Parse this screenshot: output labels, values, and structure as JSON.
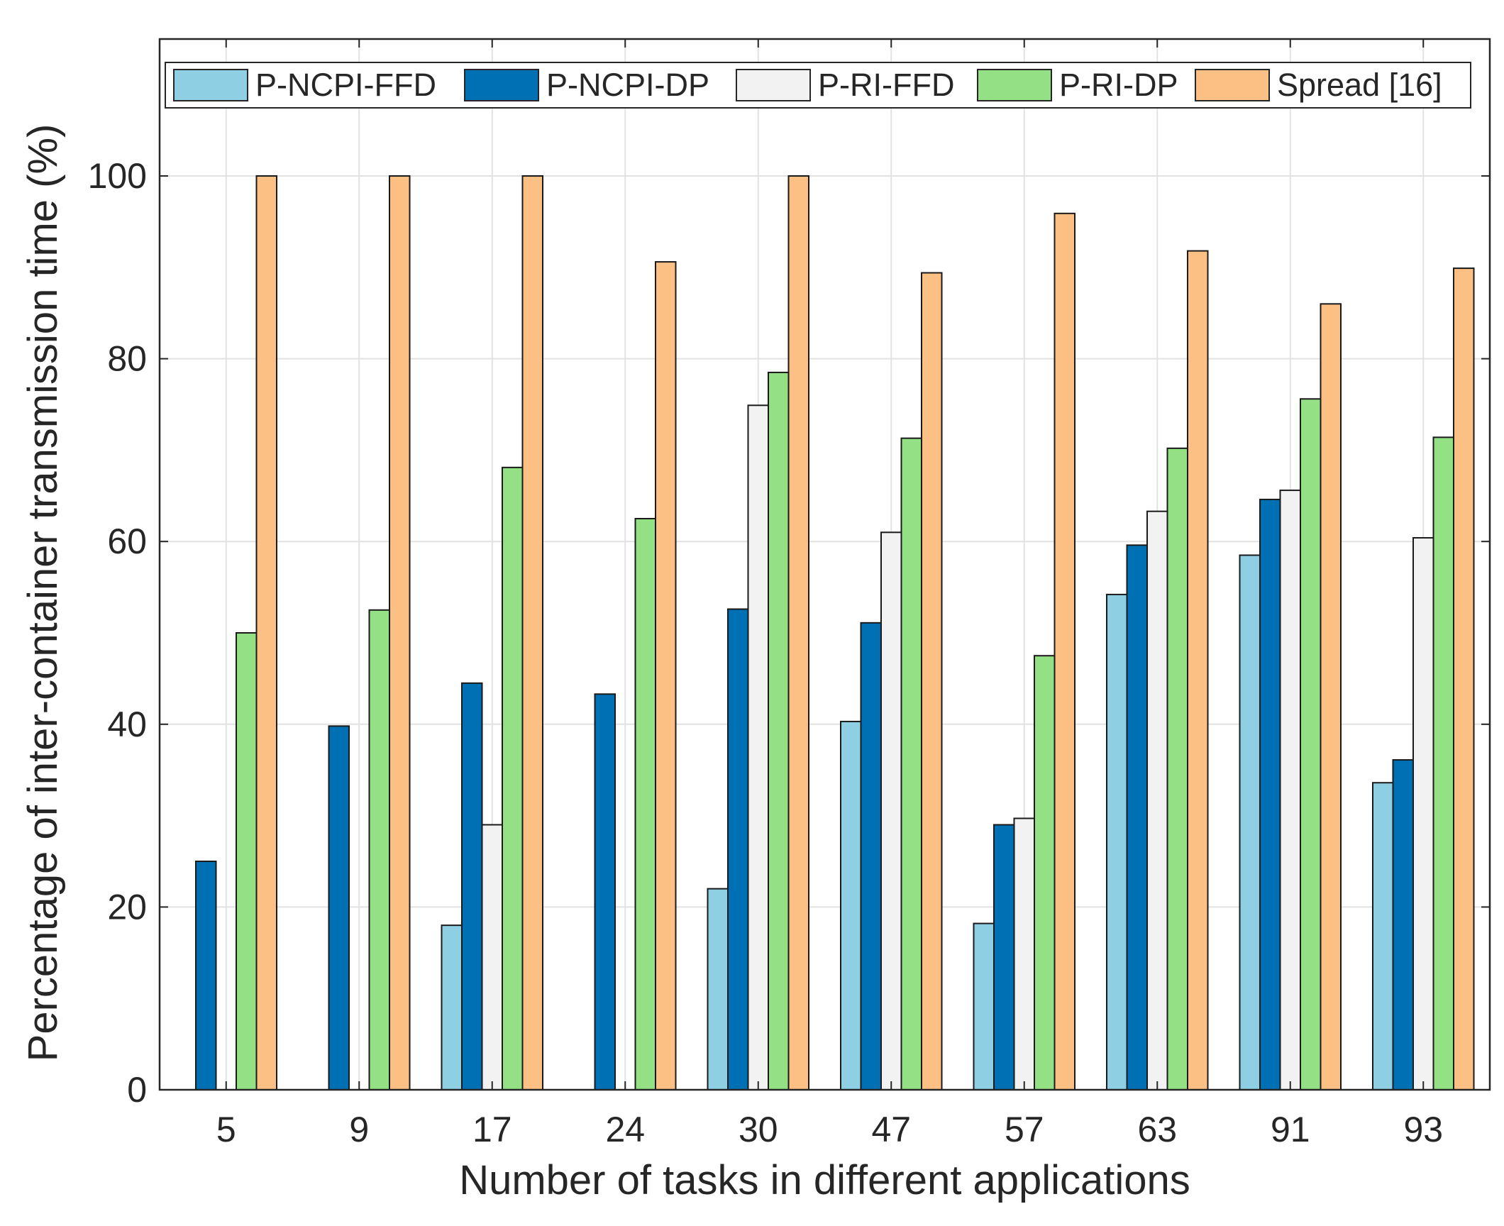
{
  "chart_data": {
    "type": "bar",
    "xlabel": "Number of tasks in different applications",
    "ylabel": "Percentage of inter-container transmission time (%)",
    "categories": [
      "5",
      "9",
      "17",
      "24",
      "30",
      "47",
      "57",
      "63",
      "91",
      "93"
    ],
    "ylim": [
      0,
      100
    ],
    "yticks": [
      0,
      20,
      40,
      60,
      80,
      100
    ],
    "grid": true,
    "legend_position": "top",
    "series": [
      {
        "name": "P-NCPI-FFD",
        "color": "#8ecfe4",
        "values": [
          0,
          0,
          18,
          0,
          22,
          40.3,
          18.2,
          54.2,
          58.5,
          33.6
        ]
      },
      {
        "name": "P-NCPI-DP",
        "color": "#0070b5",
        "values": [
          25,
          39.8,
          44.5,
          43.3,
          52.6,
          51.1,
          29,
          59.6,
          64.6,
          36.1
        ]
      },
      {
        "name": "P-RI-FFD",
        "color": "#f2f2f2",
        "values": [
          0,
          0,
          29,
          0,
          74.9,
          61,
          29.7,
          63.3,
          65.6,
          60.4
        ]
      },
      {
        "name": "P-RI-DP",
        "color": "#93e085",
        "values": [
          50,
          52.5,
          68.1,
          62.5,
          78.5,
          71.3,
          47.5,
          70.2,
          75.6,
          71.4
        ]
      },
      {
        "name": "Spread [16]",
        "color": "#fdc084",
        "values": [
          100,
          100,
          100,
          90.6,
          100,
          89.4,
          95.9,
          91.8,
          86,
          89.9
        ]
      }
    ]
  }
}
